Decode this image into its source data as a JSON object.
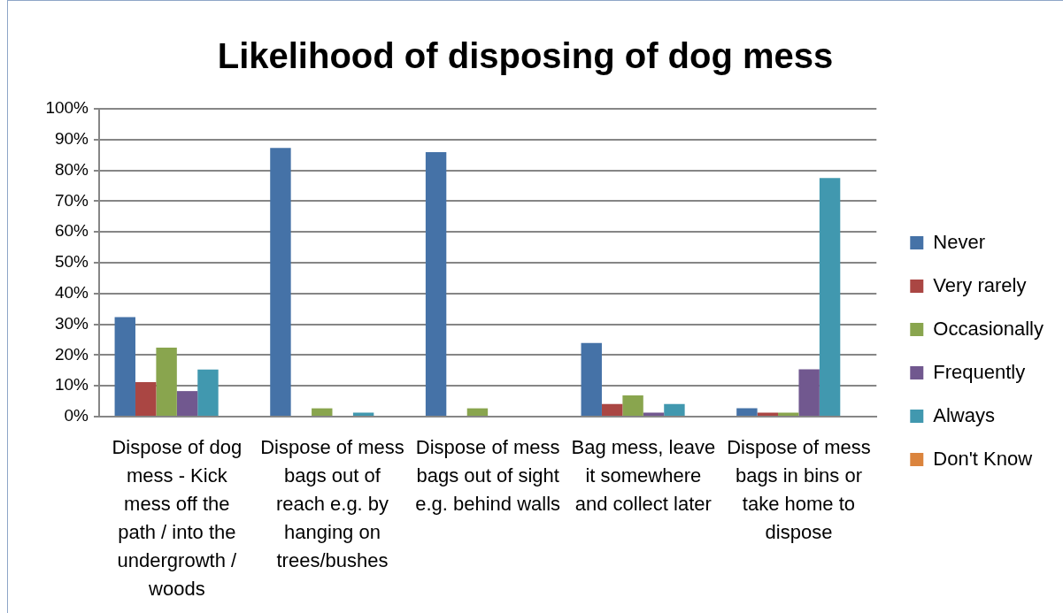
{
  "chart_data": {
    "type": "bar",
    "title": "Likelihood of disposing of dog mess",
    "categories": [
      "Dispose of dog mess - Kick mess off the path / into the undergrowth / woods",
      "Dispose of mess bags out of reach e.g. by hanging on trees/bushes",
      "Dispose of mess bags out of sight e.g. behind walls",
      "Bag mess, leave it somewhere and collect later",
      "Dispose of mess bags in bins or take home to dispose"
    ],
    "series": [
      {
        "name": "Never",
        "color": "#4572a7",
        "values": [
          32.3,
          87.3,
          85.9,
          23.9,
          2.7
        ]
      },
      {
        "name": "Very rarely",
        "color": "#aa4643",
        "values": [
          11.2,
          0,
          0,
          4.1,
          1.3
        ]
      },
      {
        "name": "Occasionally",
        "color": "#89a54e",
        "values": [
          22.4,
          2.7,
          2.7,
          6.9,
          1.3
        ]
      },
      {
        "name": "Frequently",
        "color": "#71588f",
        "values": [
          8.3,
          0,
          0,
          1.3,
          15.4
        ]
      },
      {
        "name": "Always",
        "color": "#4198af",
        "values": [
          15.3,
          1.3,
          0,
          4.1,
          77.5
        ]
      },
      {
        "name": "Don't Know",
        "color": "#db843d",
        "values": [
          0,
          0,
          0,
          0,
          0
        ]
      }
    ],
    "ylim": [
      0,
      100
    ],
    "yticks": [
      {
        "value": 0,
        "label": "0%"
      },
      {
        "value": 10,
        "label": "10%"
      },
      {
        "value": 20,
        "label": "20%"
      },
      {
        "value": 30,
        "label": "30%"
      },
      {
        "value": 40,
        "label": "40%"
      },
      {
        "value": 50,
        "label": "50%"
      },
      {
        "value": 60,
        "label": "60%"
      },
      {
        "value": 70,
        "label": "70%"
      },
      {
        "value": 80,
        "label": "80%"
      },
      {
        "value": 90,
        "label": "90%"
      },
      {
        "value": 100,
        "label": "100%"
      }
    ],
    "grid": "y",
    "legend": "right"
  }
}
